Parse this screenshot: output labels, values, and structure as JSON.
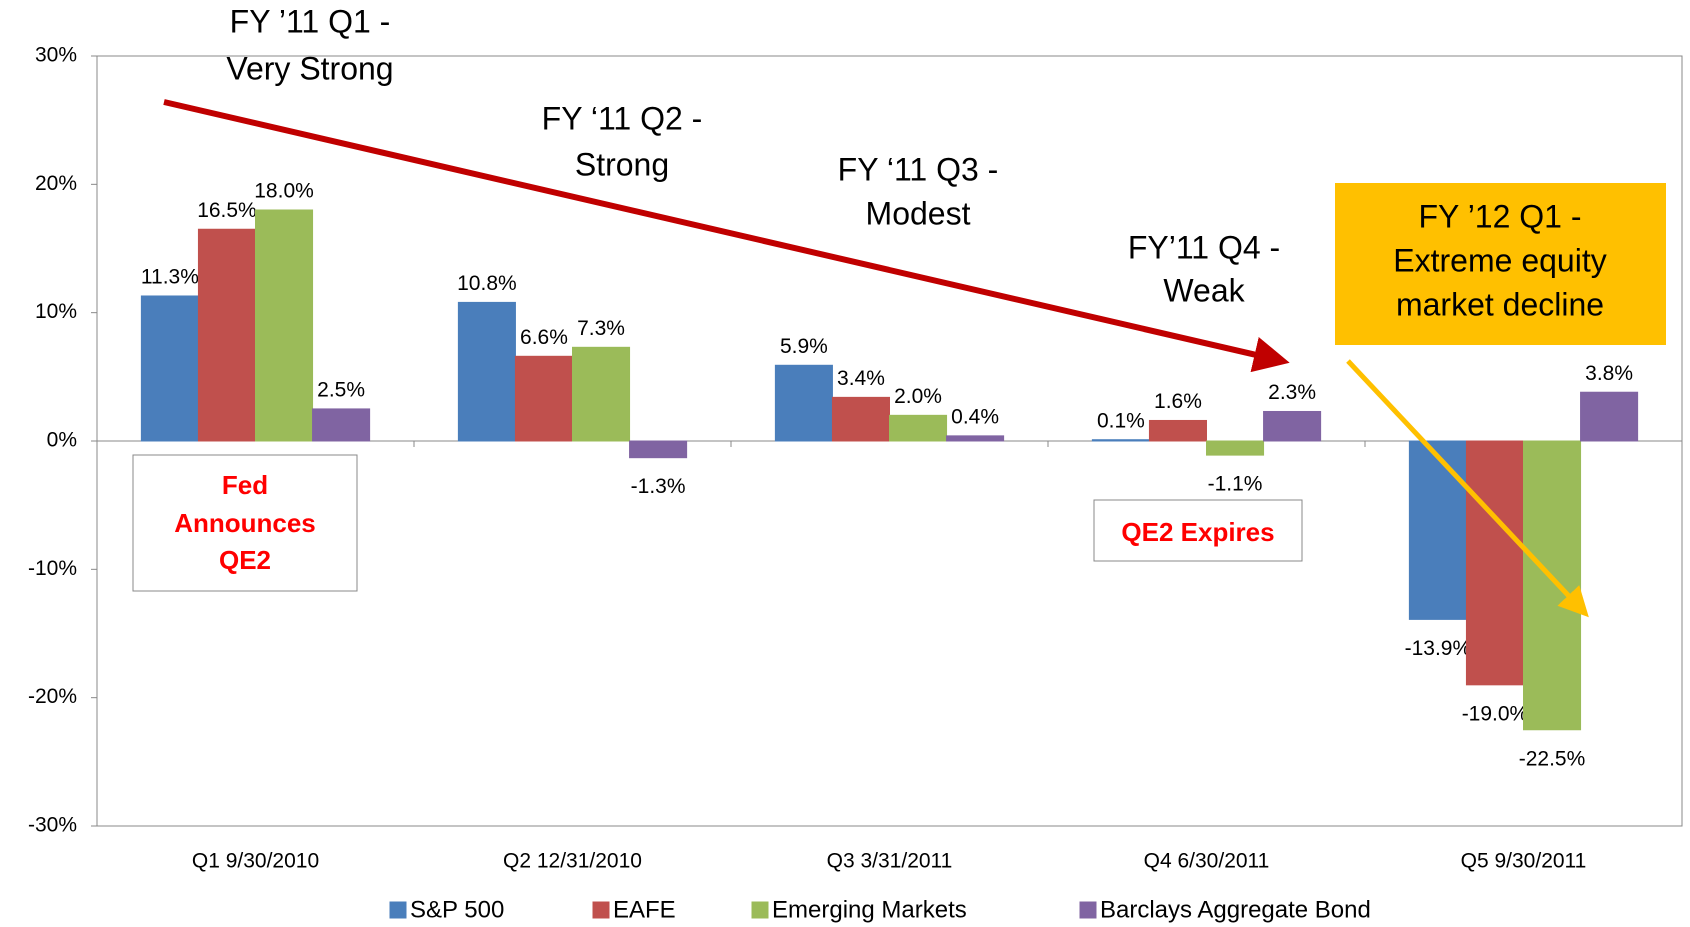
{
  "chart_data": {
    "type": "bar",
    "categories": [
      "Q1 9/30/2010",
      "Q2 12/31/2010",
      "Q3 3/31/2011",
      "Q4 6/30/2011",
      "Q5 9/30/2011"
    ],
    "series": [
      {
        "name": "S&P 500",
        "color": "#4a7ebb",
        "values": [
          11.3,
          10.8,
          5.9,
          0.1,
          -13.9
        ],
        "value_labels": [
          "11.3%",
          "10.8%",
          "5.9%",
          "0.1%",
          "-13.9%"
        ]
      },
      {
        "name": "EAFE",
        "color": "#c0504d",
        "values": [
          16.5,
          6.6,
          3.4,
          1.6,
          -19.0
        ],
        "value_labels": [
          "16.5%",
          "6.6%",
          "3.4%",
          "1.6%",
          "-19.0%"
        ]
      },
      {
        "name": "Emerging Markets",
        "color": "#9bbb59",
        "values": [
          18.0,
          7.3,
          2.0,
          -1.1,
          -22.5
        ],
        "value_labels": [
          "18.0%",
          "7.3%",
          "2.0%",
          "-1.1%",
          "-22.5%"
        ]
      },
      {
        "name": "Barclays Aggregate Bond",
        "color": "#8064a2",
        "values": [
          2.5,
          -1.3,
          0.4,
          2.3,
          3.8
        ],
        "value_labels": [
          "2.5%",
          "-1.3%",
          "0.4%",
          "2.3%",
          "3.8%"
        ]
      }
    ],
    "ylim": [
      -30,
      30
    ],
    "yticks": [
      {
        "value": -30,
        "label": "-30%"
      },
      {
        "value": -20,
        "label": "-20%"
      },
      {
        "value": -10,
        "label": "-10%"
      },
      {
        "value": 0,
        "label": "0%"
      },
      {
        "value": 10,
        "label": "10%"
      },
      {
        "value": 20,
        "label": "20%"
      },
      {
        "value": 30,
        "label": "30%"
      }
    ],
    "annotations": [
      [
        "FY ’11 Q1 -",
        "Very Strong"
      ],
      [
        "FY ‘11 Q2 -",
        "Strong"
      ],
      [
        "FY ‘11 Q3 -",
        "Modest"
      ],
      [
        "FY’11 Q4 -",
        "Weak"
      ],
      [
        "FY ’12 Q1 -",
        "Extreme equity",
        "market decline"
      ]
    ],
    "boxes": [
      [
        "Fed",
        "Announces",
        "QE2"
      ],
      [
        "QE2 Expires"
      ]
    ]
  }
}
